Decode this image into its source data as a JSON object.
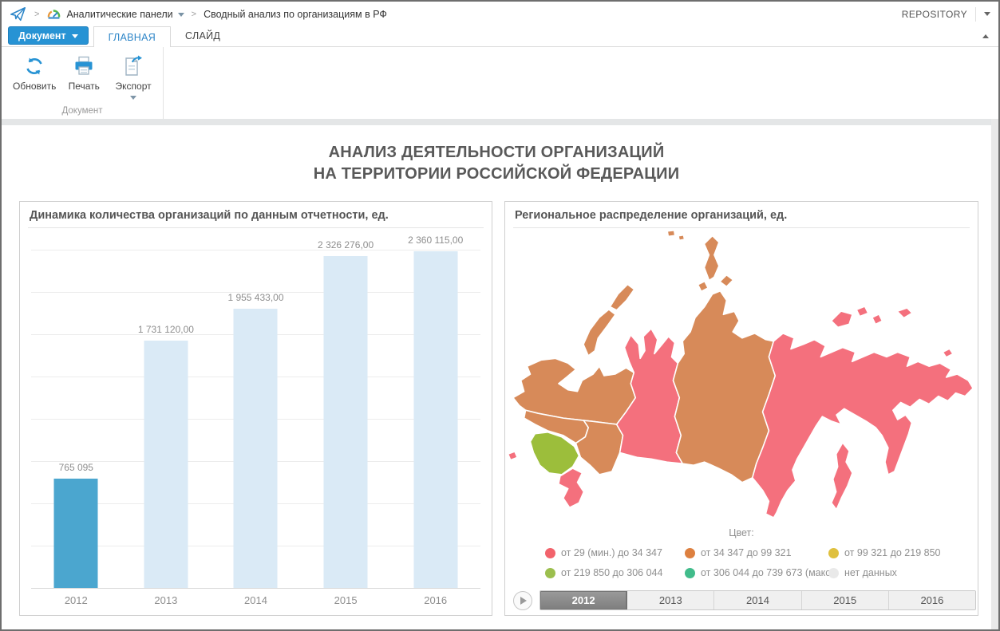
{
  "breadcrumb": {
    "items": [
      {
        "label": "Аналитические панели",
        "has_dropdown": true
      },
      {
        "label": "Сводный анализ по организациям в РФ"
      }
    ],
    "repository_label": "REPOSITORY"
  },
  "tabs": {
    "document_button": "Документ",
    "items": [
      {
        "label": "ГЛАВНАЯ",
        "active": true
      },
      {
        "label": "СЛАЙД",
        "active": false
      }
    ]
  },
  "ribbon": {
    "buttons": [
      {
        "label": "Обновить",
        "icon": "refresh-icon"
      },
      {
        "label": "Печать",
        "icon": "printer-icon"
      },
      {
        "label": "Экспорт",
        "icon": "export-icon",
        "has_dropdown": true
      }
    ],
    "group_label": "Документ"
  },
  "page": {
    "title_line1": "АНАЛИЗ ДЕЯТЕЛЬНОСТИ ОРГАНИЗАЦИЙ",
    "title_line2": "НА ТЕРРИТОРИИ РОССИЙСКОЙ ФЕДЕРАЦИИ"
  },
  "chart_data": [
    {
      "type": "bar",
      "title": "Динамика количества организаций по данным отчетности, ед.",
      "categories": [
        "2012",
        "2013",
        "2014",
        "2015",
        "2016"
      ],
      "values": [
        765095,
        1731120,
        1955433,
        2326276,
        2360115
      ],
      "value_labels": [
        "765 095",
        "1 731 120,00",
        "1 955 433,00",
        "2 326 276,00",
        "2 360 115,00"
      ],
      "highlight_index": 0,
      "bar_color_highlight": "#4BA6CF",
      "bar_color_default": "#DAEAF6",
      "ylim": [
        0,
        2375000
      ],
      "grid": true,
      "gridline_count": 8,
      "legend_position": "none"
    },
    {
      "type": "choropleth-map",
      "title": "Региональное распределение организаций, ед.",
      "legend_title": "Цвет:",
      "legend": [
        {
          "color": "#F2636C",
          "label": "от 29 (мин.) до 34 347"
        },
        {
          "color": "#DD8040",
          "label": "от 34 347 до 99 321"
        },
        {
          "color": "#DFC03E",
          "label": "от 99 321 до 219 850"
        },
        {
          "color": "#9CBF4E",
          "label": "от 219 850 до 306 044"
        },
        {
          "color": "#41BC8B",
          "label": "от 306 044 до 739 673 (макс.)"
        },
        {
          "color": "#E9E9E9",
          "label": "нет данных"
        }
      ],
      "region_fills": {
        "pink": "#F4707D",
        "orange": "#D78A59",
        "green": "#9CBE3B"
      },
      "timeline": {
        "years": [
          "2012",
          "2013",
          "2014",
          "2015",
          "2016"
        ],
        "selected": "2012"
      }
    }
  ]
}
